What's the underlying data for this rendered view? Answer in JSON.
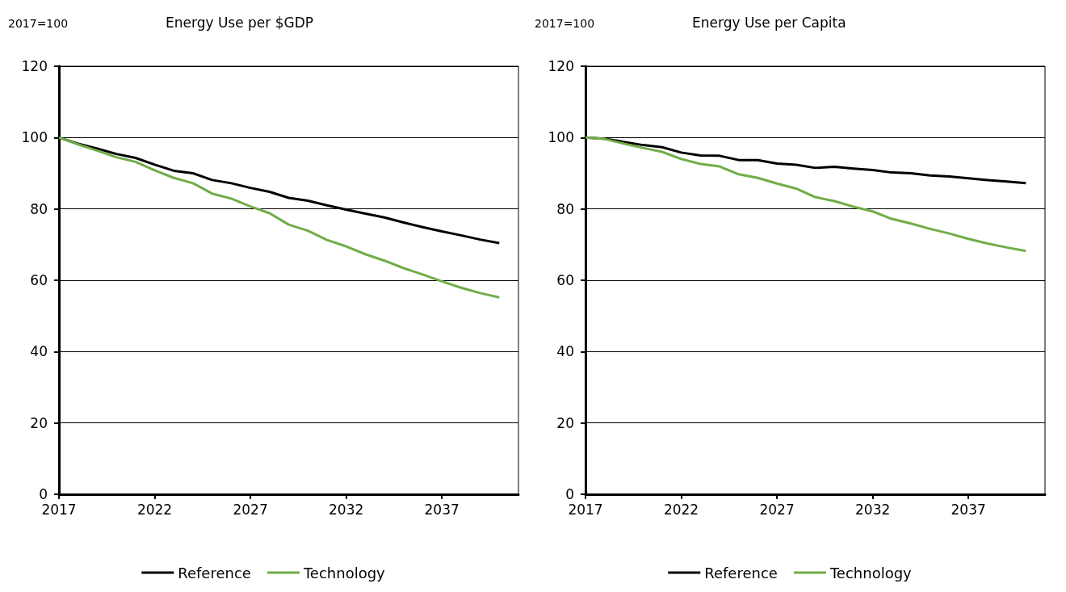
{
  "chart_data": [
    {
      "type": "line",
      "title": "Energy Use per $GDP",
      "ylabel": "2017=100",
      "x": [
        2017,
        2018,
        2019,
        2020,
        2021,
        2022,
        2023,
        2024,
        2025,
        2026,
        2027,
        2028,
        2029,
        2030,
        2031,
        2032,
        2033,
        2034,
        2035,
        2036,
        2037,
        2038,
        2039,
        2040
      ],
      "series": [
        {
          "name": "Reference",
          "color": "#000000",
          "values": [
            100,
            98.3,
            96.9,
            95.4,
            94.3,
            92.4,
            90.7,
            90.0,
            88.1,
            87.2,
            85.9,
            84.8,
            83.1,
            82.3,
            81.0,
            79.8,
            78.7,
            77.6,
            76.2,
            74.9,
            73.7,
            72.6,
            71.4,
            70.4
          ]
        },
        {
          "name": "Technology",
          "color": "#70ad47",
          "values": [
            100,
            98.1,
            96.3,
            94.5,
            93.2,
            90.8,
            88.7,
            87.2,
            84.3,
            82.9,
            80.7,
            78.8,
            75.6,
            73.9,
            71.3,
            69.5,
            67.3,
            65.5,
            63.4,
            61.6,
            59.7,
            57.9,
            56.4,
            55.2
          ]
        }
      ],
      "xlim": [
        2017,
        2041
      ],
      "xticks": [
        2017,
        2022,
        2027,
        2032,
        2037
      ],
      "ylim": [
        0,
        120
      ],
      "yticks": [
        0,
        20,
        40,
        60,
        80,
        100,
        120
      ],
      "grid": "y",
      "legend": "bottom",
      "marker": "none",
      "line_style": "solid"
    },
    {
      "type": "line",
      "title": "Energy Use per Capita",
      "ylabel": "2017=100",
      "x": [
        2017,
        2018,
        2019,
        2020,
        2021,
        2022,
        2023,
        2024,
        2025,
        2026,
        2027,
        2028,
        2029,
        2030,
        2031,
        2032,
        2033,
        2034,
        2035,
        2036,
        2037,
        2038,
        2039,
        2040
      ],
      "series": [
        {
          "name": "Reference",
          "color": "#000000",
          "values": [
            100,
            99.7,
            98.8,
            97.9,
            97.3,
            95.8,
            95.0,
            94.9,
            93.7,
            93.7,
            92.7,
            92.4,
            91.5,
            91.8,
            91.3,
            90.9,
            90.2,
            90.0,
            89.4,
            89.1,
            88.6,
            88.1,
            87.7,
            87.2
          ]
        },
        {
          "name": "Technology",
          "color": "#70ad47",
          "values": [
            100,
            99.6,
            98.3,
            97.1,
            96.0,
            94.0,
            92.6,
            91.9,
            89.7,
            88.7,
            87.1,
            85.7,
            83.3,
            82.2,
            80.6,
            79.3,
            77.2,
            75.9,
            74.4,
            73.1,
            71.6,
            70.3,
            69.2,
            68.2
          ]
        }
      ],
      "xlim": [
        2017,
        2041
      ],
      "xticks": [
        2017,
        2022,
        2027,
        2032,
        2037
      ],
      "ylim": [
        0,
        120
      ],
      "yticks": [
        0,
        20,
        40,
        60,
        80,
        100,
        120
      ],
      "grid": "y",
      "legend": "bottom",
      "marker": "none",
      "line_style": "solid"
    }
  ]
}
